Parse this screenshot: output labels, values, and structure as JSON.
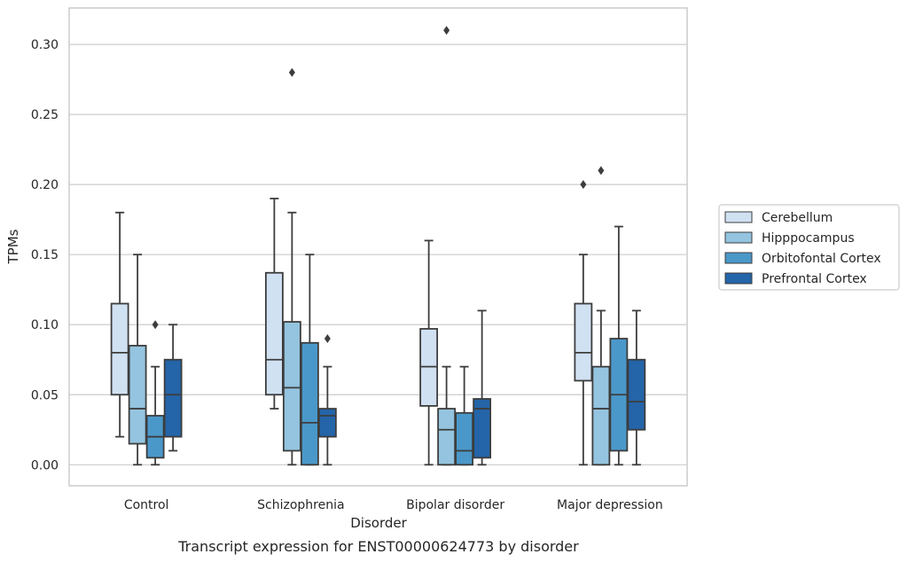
{
  "caption": "Transcript expression for ENST00000624773 by disorder",
  "chart_data": {
    "type": "box",
    "title": "",
    "xlabel": "Disorder",
    "ylabel": "TPMs",
    "ylim": [
      -0.015,
      0.326
    ],
    "yticks": [
      "0.00",
      "0.05",
      "0.10",
      "0.15",
      "0.20",
      "0.25",
      "0.30"
    ],
    "ytick_values": [
      0,
      0.05,
      0.1,
      0.15,
      0.2,
      0.25,
      0.3
    ],
    "grid": "horizontal",
    "legend_position": "center-right (outside plot)",
    "categories": [
      "Control",
      "Schizophrenia",
      "Bipolar disorder",
      "Major depression"
    ],
    "series": [
      {
        "name": "Cerebellum",
        "color": "#d0e1f2",
        "boxes": [
          {
            "whislo": 0.02,
            "q1": 0.05,
            "med": 0.08,
            "q3": 0.115,
            "whishi": 0.18,
            "fliers": []
          },
          {
            "whislo": 0.04,
            "q1": 0.05,
            "med": 0.075,
            "q3": 0.137,
            "whishi": 0.19,
            "fliers": []
          },
          {
            "whislo": 0.0,
            "q1": 0.042,
            "med": 0.07,
            "q3": 0.097,
            "whishi": 0.16,
            "fliers": []
          },
          {
            "whislo": 0.0,
            "q1": 0.06,
            "med": 0.08,
            "q3": 0.115,
            "whishi": 0.15,
            "fliers": [
              0.2
            ]
          }
        ]
      },
      {
        "name": "Hipppocampus",
        "color": "#94c4df",
        "boxes": [
          {
            "whislo": 0.0,
            "q1": 0.015,
            "med": 0.04,
            "q3": 0.085,
            "whishi": 0.15,
            "fliers": []
          },
          {
            "whislo": 0.0,
            "q1": 0.01,
            "med": 0.055,
            "q3": 0.102,
            "whishi": 0.18,
            "fliers": [
              0.28
            ]
          },
          {
            "whislo": 0.0,
            "q1": 0.0,
            "med": 0.025,
            "q3": 0.04,
            "whishi": 0.07,
            "fliers": [
              0.31
            ]
          },
          {
            "whislo": 0.0,
            "q1": 0.0,
            "med": 0.04,
            "q3": 0.07,
            "whishi": 0.11,
            "fliers": [
              0.21
            ]
          }
        ]
      },
      {
        "name": "Orbitofontal Cortex",
        "color": "#4a98c9",
        "boxes": [
          {
            "whislo": 0.0,
            "q1": 0.005,
            "med": 0.02,
            "q3": 0.035,
            "whishi": 0.07,
            "fliers": [
              0.1
            ]
          },
          {
            "whislo": 0.0,
            "q1": 0.0,
            "med": 0.03,
            "q3": 0.087,
            "whishi": 0.15,
            "fliers": []
          },
          {
            "whislo": 0.0,
            "q1": 0.0,
            "med": 0.01,
            "q3": 0.037,
            "whishi": 0.07,
            "fliers": []
          },
          {
            "whislo": 0.0,
            "q1": 0.01,
            "med": 0.05,
            "q3": 0.09,
            "whishi": 0.17,
            "fliers": []
          }
        ]
      },
      {
        "name": "Prefrontal Cortex",
        "color": "#2464a8",
        "boxes": [
          {
            "whislo": 0.01,
            "q1": 0.02,
            "med": 0.05,
            "q3": 0.075,
            "whishi": 0.1,
            "fliers": []
          },
          {
            "whislo": 0.0,
            "q1": 0.02,
            "med": 0.035,
            "q3": 0.04,
            "whishi": 0.07,
            "fliers": [
              0.09
            ]
          },
          {
            "whislo": 0.0,
            "q1": 0.005,
            "med": 0.04,
            "q3": 0.047,
            "whishi": 0.11,
            "fliers": []
          },
          {
            "whislo": 0.0,
            "q1": 0.025,
            "med": 0.045,
            "q3": 0.075,
            "whishi": 0.11,
            "fliers": []
          }
        ]
      }
    ]
  }
}
